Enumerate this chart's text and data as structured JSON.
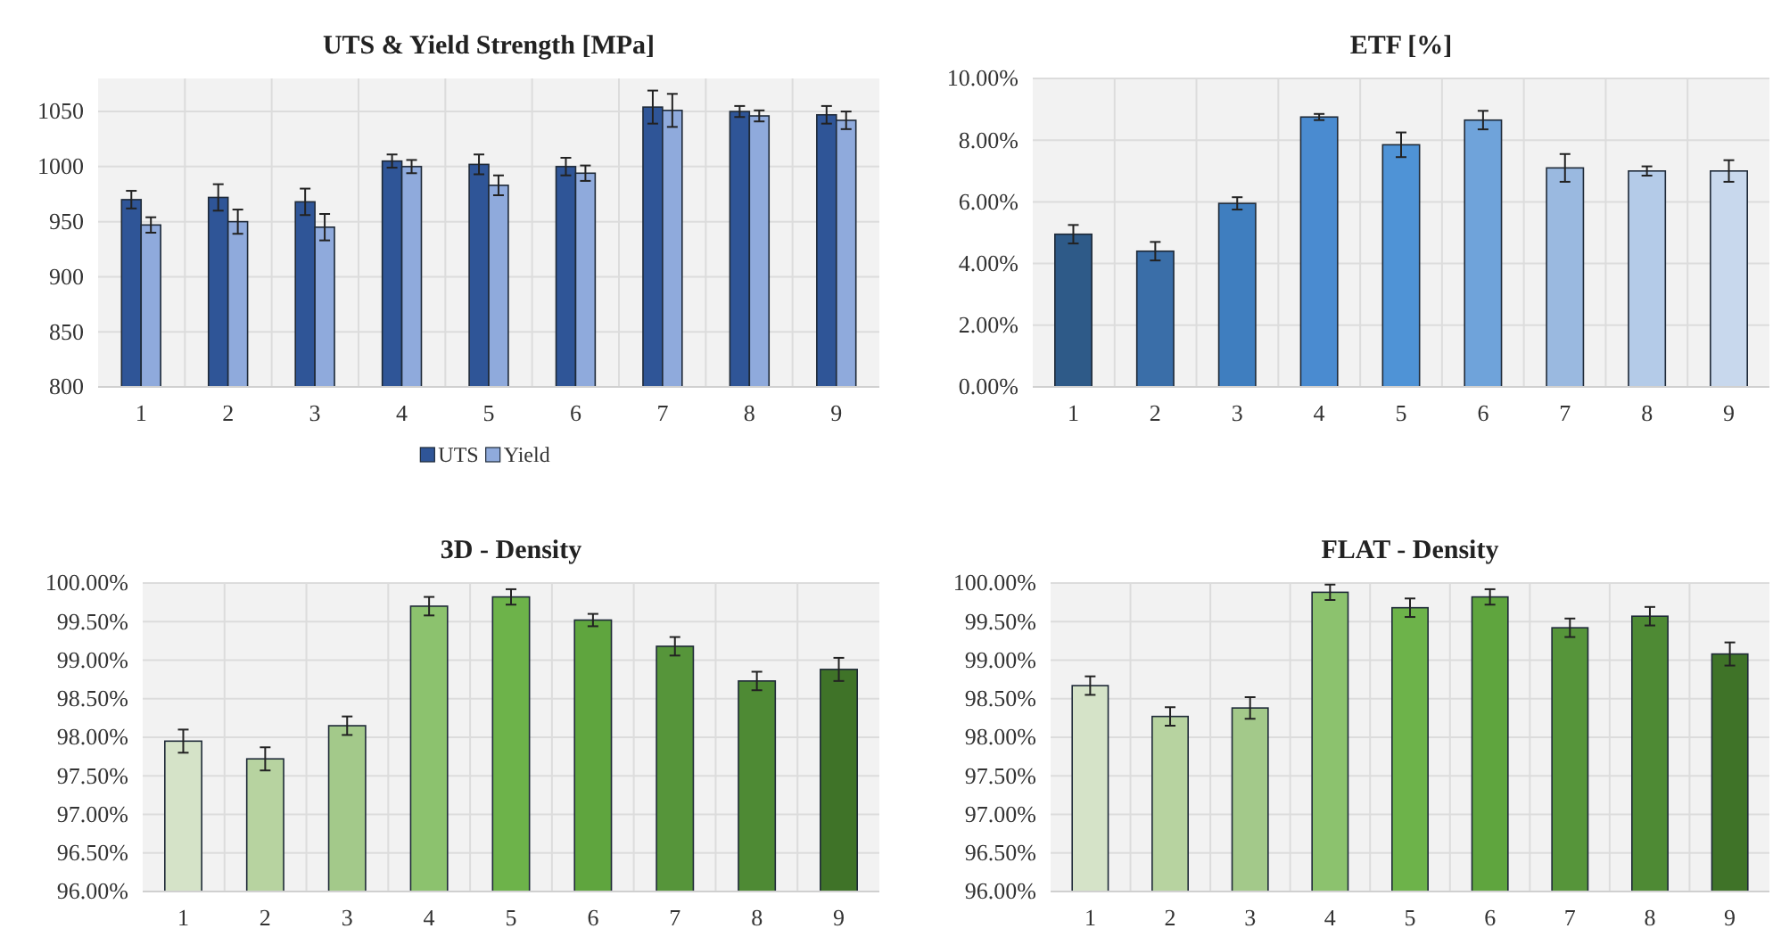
{
  "chart_data": [
    {
      "type": "bar",
      "title": "UTS & Yield Strength [MPa]",
      "categories": [
        "1",
        "2",
        "3",
        "4",
        "5",
        "6",
        "7",
        "8",
        "9"
      ],
      "ylim": [
        800,
        1080
      ],
      "yticks": [
        800,
        850,
        900,
        950,
        1000,
        1050
      ],
      "grid": true,
      "legend": "bottom",
      "series": [
        {
          "name": "UTS",
          "color": "#2f5597",
          "values": [
            970,
            972,
            968,
            1005,
            1002,
            1000,
            1054,
            1050,
            1047
          ],
          "errors": [
            8,
            12,
            12,
            6,
            9,
            8,
            15,
            5,
            8
          ]
        },
        {
          "name": "Yield",
          "color": "#8faadc",
          "values": [
            947,
            950,
            945,
            1000,
            983,
            994,
            1051,
            1046,
            1042
          ],
          "errors": [
            7,
            11,
            12,
            6,
            9,
            7,
            15,
            5,
            8
          ]
        }
      ]
    },
    {
      "type": "bar",
      "title": "ETF [%]",
      "categories": [
        "1",
        "2",
        "3",
        "4",
        "5",
        "6",
        "7",
        "8",
        "9"
      ],
      "ylim": [
        0,
        10
      ],
      "yticks": [
        {
          "value": 0,
          "label": "0.00%"
        },
        {
          "value": 2,
          "label": "2.00%"
        },
        {
          "value": 4,
          "label": "4.00%"
        },
        {
          "value": 6,
          "label": "6.00%"
        },
        {
          "value": 8,
          "label": "8.00%"
        },
        {
          "value": 10,
          "label": "10.00%"
        }
      ],
      "grid": true,
      "values": [
        4.95,
        4.4,
        5.95,
        8.75,
        7.85,
        8.65,
        7.1,
        7.0,
        7.0
      ],
      "errors": [
        0.3,
        0.3,
        0.2,
        0.1,
        0.4,
        0.3,
        0.45,
        0.15,
        0.35
      ],
      "colors": [
        "#2e5a88",
        "#3a6ea8",
        "#3f7ebf",
        "#4a8bd0",
        "#4f93d6",
        "#6fa3da",
        "#9ab9e0",
        "#b4cbe8",
        "#c8d8ed"
      ]
    },
    {
      "type": "bar",
      "title": "3D - Density",
      "categories": [
        "1",
        "2",
        "3",
        "4",
        "5",
        "6",
        "7",
        "8",
        "9"
      ],
      "ylim": [
        96,
        100
      ],
      "yticks": [
        {
          "value": 96,
          "label": "96.00%"
        },
        {
          "value": 96.5,
          "label": "96.50%"
        },
        {
          "value": 97,
          "label": "97.00%"
        },
        {
          "value": 97.5,
          "label": "97.50%"
        },
        {
          "value": 98,
          "label": "98.00%"
        },
        {
          "value": 98.5,
          "label": "98.50%"
        },
        {
          "value": 99,
          "label": "99.00%"
        },
        {
          "value": 99.5,
          "label": "99.50%"
        },
        {
          "value": 100,
          "label": "100.00%"
        }
      ],
      "grid": true,
      "values": [
        97.95,
        97.72,
        98.15,
        99.7,
        99.82,
        99.52,
        99.18,
        98.73,
        98.88
      ],
      "errors": [
        0.15,
        0.15,
        0.12,
        0.12,
        0.1,
        0.08,
        0.12,
        0.12,
        0.15
      ],
      "colors": [
        "#d5e3c8",
        "#b7d3a0",
        "#a3c98a",
        "#8cc26e",
        "#6db34a",
        "#5fa53e",
        "#56953a",
        "#4e8a34",
        "#3f7328"
      ]
    },
    {
      "type": "bar",
      "title": "FLAT - Density",
      "categories": [
        "1",
        "2",
        "3",
        "4",
        "5",
        "6",
        "7",
        "8",
        "9"
      ],
      "ylim": [
        96,
        100
      ],
      "yticks": [
        {
          "value": 96,
          "label": "96.00%"
        },
        {
          "value": 96.5,
          "label": "96.50%"
        },
        {
          "value": 97,
          "label": "97.00%"
        },
        {
          "value": 97.5,
          "label": "97.50%"
        },
        {
          "value": 98,
          "label": "98.00%"
        },
        {
          "value": 98.5,
          "label": "98.50%"
        },
        {
          "value": 99,
          "label": "99.00%"
        },
        {
          "value": 99.5,
          "label": "99.50%"
        },
        {
          "value": 100,
          "label": "100.00%"
        }
      ],
      "grid": true,
      "values": [
        98.67,
        98.27,
        98.38,
        99.88,
        99.68,
        99.82,
        99.42,
        99.57,
        99.08
      ],
      "errors": [
        0.12,
        0.12,
        0.14,
        0.1,
        0.12,
        0.1,
        0.12,
        0.12,
        0.15
      ],
      "colors": [
        "#d5e3c8",
        "#b7d3a0",
        "#a3c98a",
        "#8cc26e",
        "#6db34a",
        "#5fa53e",
        "#56953a",
        "#4e8a34",
        "#3f7328"
      ]
    }
  ]
}
